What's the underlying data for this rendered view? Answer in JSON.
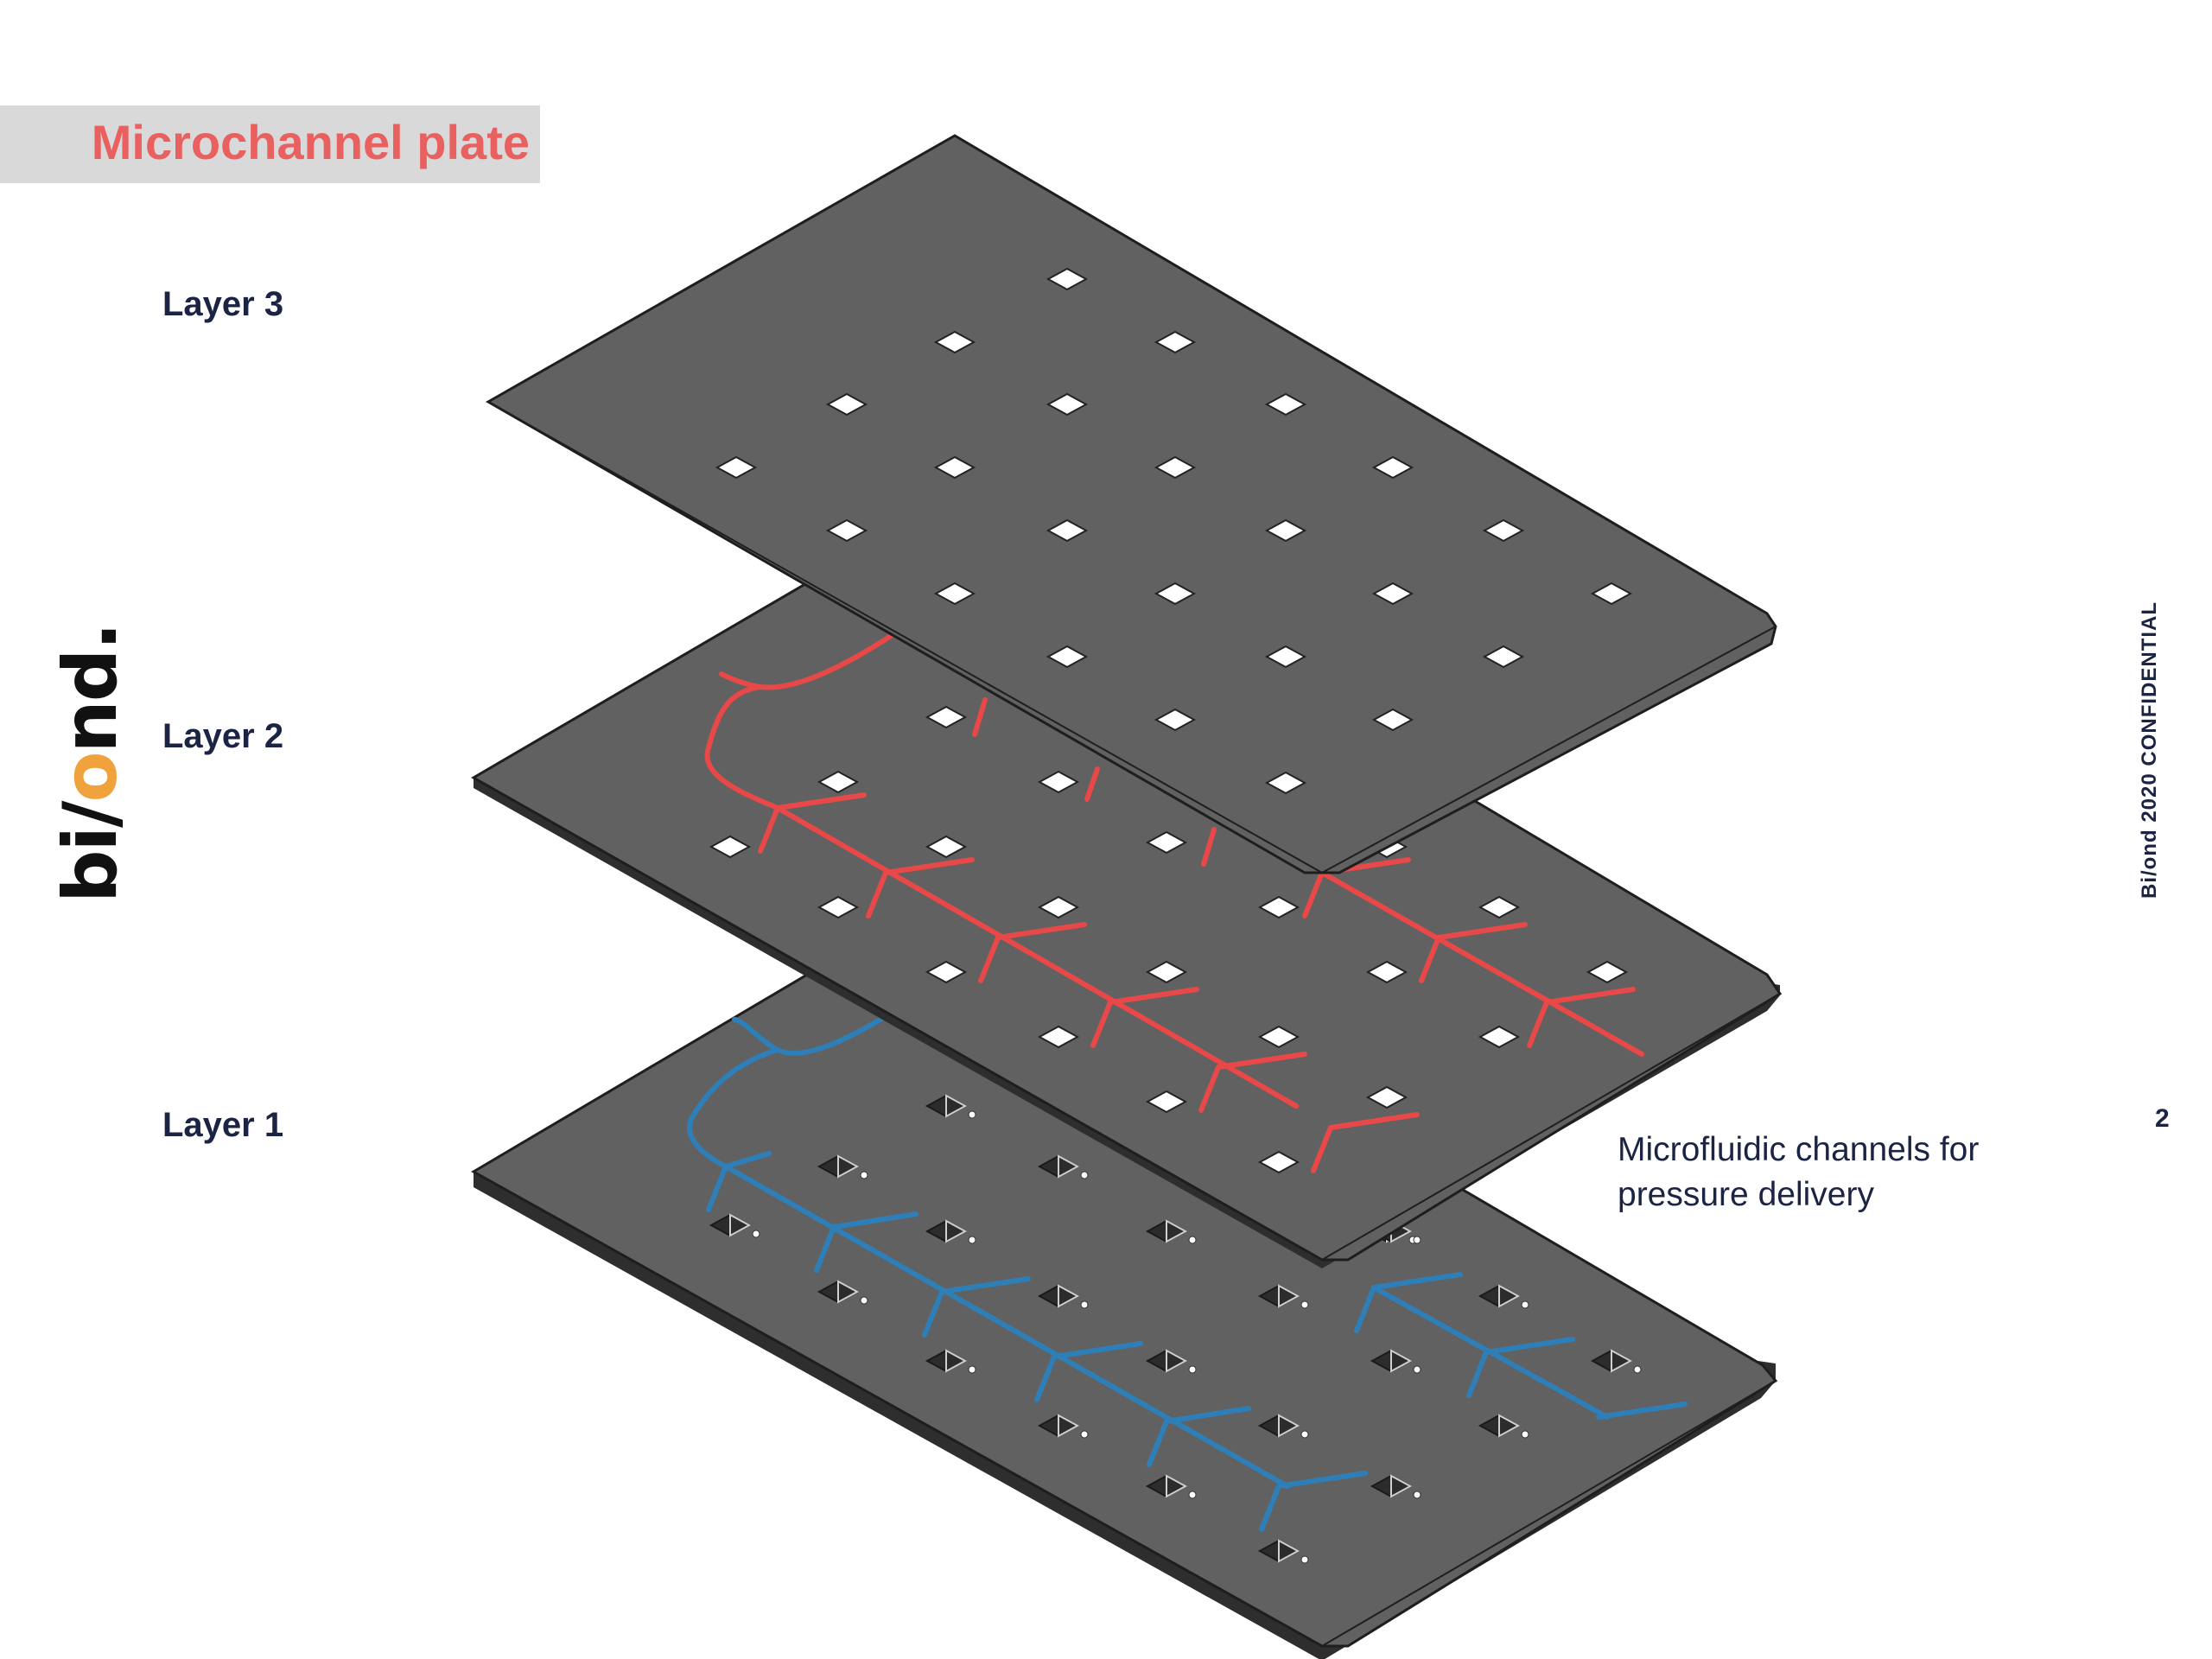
{
  "title": "Microchannel plate",
  "layers": {
    "layer3": "Layer 3",
    "layer2": "Layer 2",
    "layer1": "Layer 1"
  },
  "caption": "Microfluidic channels for pressure delivery",
  "side_text": "Bi/ond 2020  CONFIDENTIAL",
  "page_number": "2",
  "logo": {
    "left": "bi/",
    "accent": "o",
    "right": "nd."
  },
  "colors": {
    "title": "#e8605f",
    "plate": "#616161",
    "plate_edge": "#3a3a3a",
    "channel_layer2": "#e84848",
    "channel_layer1": "#2e7fb8",
    "text": "#1c2444"
  }
}
